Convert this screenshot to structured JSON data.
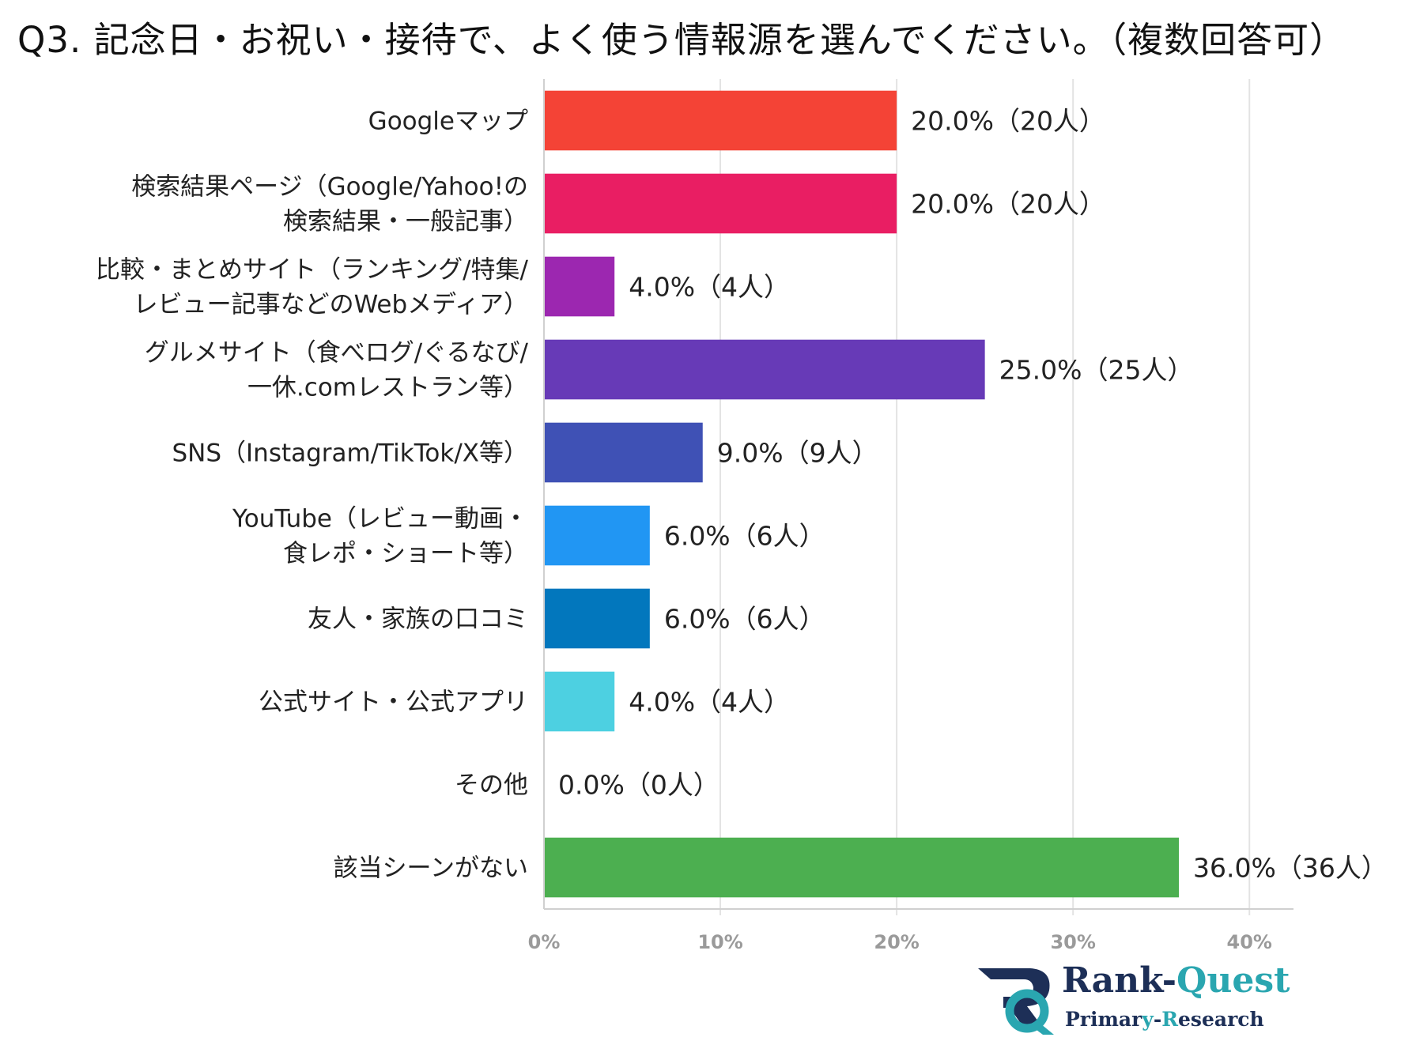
{
  "chart_data": {
    "type": "bar",
    "orientation": "horizontal",
    "title": "Q3. 記念日・お祝い・接待で、よく使う情報源を選んでください。（複数回答可）",
    "categories": [
      [
        "Googleマップ"
      ],
      [
        "検索結果ページ（Google/Yahoo!の",
        "検索結果・一般記事）"
      ],
      [
        "比較・まとめサイト（ランキング/特集/",
        "レビュー記事などのWebメディア）"
      ],
      [
        "グルメサイト（食べログ/ぐるなび/",
        "一休.comレストラン等）"
      ],
      [
        "SNS（Instagram/TikTok/X等）"
      ],
      [
        "YouTube（レビュー動画・",
        "食レポ・ショート等）"
      ],
      [
        "友人・家族の口コミ"
      ],
      [
        "公式サイト・公式アプリ"
      ],
      [
        "その他"
      ],
      [
        "該当シーンがない"
      ]
    ],
    "values": [
      20.0,
      20.0,
      4.0,
      25.0,
      9.0,
      6.0,
      6.0,
      4.0,
      0.0,
      36.0
    ],
    "value_labels": [
      "20.0%（20人）",
      "20.0%（20人）",
      "4.0%（4人）",
      "25.0%（25人）",
      "9.0%（9人）",
      "6.0%（6人）",
      "6.0%（6人）",
      "4.0%（4人）",
      "0.0%（0人）",
      "36.0%（36人）"
    ],
    "colors": [
      "#f44336",
      "#e91e63",
      "#9c27b0",
      "#673ab7",
      "#3f51b5",
      "#2196f3",
      "#0277bd",
      "#4dd0e1",
      "#9e9e9e",
      "#4caf50"
    ],
    "xlim": [
      0,
      42.5
    ],
    "xticks": [
      0,
      10,
      20,
      30,
      40
    ],
    "xtick_labels": [
      "0%",
      "10%",
      "20%",
      "30%",
      "40%"
    ],
    "grid": true,
    "legend": false
  },
  "logo": {
    "name_part1": "Rank-",
    "name_part2": "Quest",
    "sub_part1": "Primar",
    "sub_part2": "y",
    "sub_part3": "-",
    "sub_part4": "R",
    "sub_part5": "esearch"
  }
}
